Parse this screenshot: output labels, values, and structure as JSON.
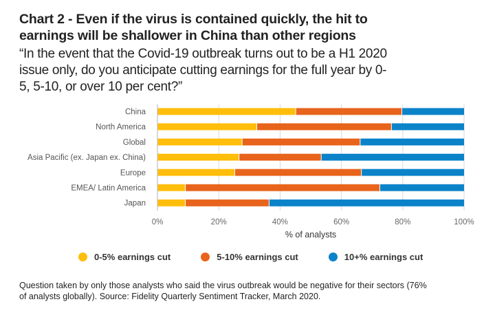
{
  "header": {
    "title_line1": "Chart 2 - Even if the virus is contained quickly, the hit to",
    "title_line2": "earnings will be shallower in China than other regions",
    "subtitle_line1": "“In the event that the Covid-19 outbreak turns out to be a H1 2020",
    "subtitle_line2": "issue only, do you anticipate cutting earnings for the full year by 0-",
    "subtitle_line3": "5, 5-10, or over 10 per cent?”"
  },
  "chart_data": {
    "type": "bar",
    "orientation": "horizontal",
    "stacked": true,
    "categories": [
      "China",
      "North America",
      "Global",
      "Asia Pacific (ex. Japan ex. China)",
      "Europe",
      "EMEA/ Latin America",
      "Japan"
    ],
    "series": [
      {
        "name": "0-5% earnings cut",
        "color": "#FFBE0B",
        "values": [
          45,
          32.3,
          27.5,
          26.5,
          25.1,
          9,
          9
        ]
      },
      {
        "name": "5-10% earnings cut",
        "color": "#E8641C",
        "values": [
          34.6,
          43.9,
          38.5,
          26.8,
          41.3,
          63.4,
          27.3
        ]
      },
      {
        "name": "10+% earnings cut",
        "color": "#0B83C9",
        "values": [
          20.4,
          23.8,
          34,
          46.7,
          33.6,
          27.6,
          63.7
        ]
      }
    ],
    "xlabel": "% of analysts",
    "ylabel": "",
    "xlim": [
      0,
      100
    ],
    "xticks": [
      0,
      20,
      40,
      60,
      80,
      100
    ],
    "xtick_labels": [
      "0%",
      "20%",
      "40%",
      "60%",
      "80%",
      "100%"
    ],
    "grid": true,
    "legend_position": "bottom"
  },
  "footnote": {
    "line1": "Question taken by only those analysts who said the virus outbreak would be negative for their sectors (76%",
    "line2": "of analysts globally). Source: Fidelity Quarterly Sentiment Tracker, March 2020."
  }
}
